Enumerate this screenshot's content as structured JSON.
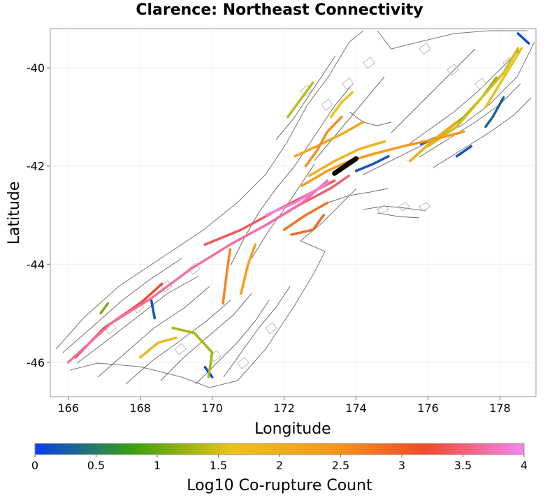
{
  "title": "Clarence: Northeast Connectivity",
  "x_axis": {
    "label": "Longitude",
    "ticks": [
      "166",
      "168",
      "170",
      "172",
      "174",
      "176",
      "178"
    ]
  },
  "y_axis": {
    "label": "Latitude",
    "ticks": [
      "-40",
      "-42",
      "-44",
      "-46"
    ]
  },
  "colorbar": {
    "label": "Log10 Co-rupture Count",
    "ticks": [
      "0",
      "0.5",
      "1",
      "1.5",
      "2",
      "2.5",
      "3",
      "3.5",
      "4"
    ],
    "stops": [
      "#0a3cf0",
      "#3aa00e",
      "#e9c41c",
      "#f59a1d",
      "#ee4b2b",
      "#f386f0"
    ]
  },
  "colors": {
    "selected_fault": "#000000",
    "fault_trace": "#555555",
    "subsection_box": "#bbbbbb",
    "coastline": "#777777"
  },
  "chart_data": {
    "type": "map",
    "title": "Clarence: Northeast Connectivity",
    "xlabel": "Longitude",
    "ylabel": "Latitude",
    "xlim": [
      165.5,
      179.0
    ],
    "ylim": [
      -46.7,
      -39.2
    ],
    "color_scale": {
      "min": 0,
      "max": 4,
      "label": "Log10 Co-rupture Count"
    },
    "selected_fault": {
      "name": "Clarence",
      "path": [
        [
          173.4,
          -42.15
        ],
        [
          173.7,
          -42.0
        ],
        [
          174.0,
          -41.85
        ]
      ]
    },
    "faults": [
      {
        "value": 3.7,
        "path": [
          [
            166.0,
            -46.0
          ],
          [
            167.2,
            -45.2
          ],
          [
            168.3,
            -44.7
          ],
          [
            169.4,
            -44.1
          ],
          [
            170.5,
            -43.6
          ],
          [
            171.5,
            -43.2
          ],
          [
            172.5,
            -42.75
          ],
          [
            173.2,
            -42.3
          ]
        ]
      },
      {
        "value": 3.2,
        "path": [
          [
            166.2,
            -45.9
          ],
          [
            167.0,
            -45.3
          ],
          [
            168.0,
            -44.8
          ],
          [
            168.6,
            -44.4
          ]
        ]
      },
      {
        "value": 3.4,
        "path": [
          [
            169.8,
            -43.6
          ],
          [
            170.8,
            -43.3
          ],
          [
            171.8,
            -42.9
          ],
          [
            172.6,
            -42.6
          ],
          [
            173.4,
            -42.3
          ]
        ]
      },
      {
        "value": 3.5,
        "path": [
          [
            171.5,
            -43.2
          ],
          [
            172.4,
            -42.8
          ],
          [
            173.3,
            -42.45
          ],
          [
            173.8,
            -42.2
          ]
        ]
      },
      {
        "value": 3.9,
        "path": [
          [
            171.5,
            -43.0
          ],
          [
            172.3,
            -42.75
          ],
          [
            173.2,
            -42.35
          ]
        ]
      },
      {
        "value": 2.8,
        "path": [
          [
            172.0,
            -43.3
          ],
          [
            172.6,
            -43.0
          ],
          [
            173.2,
            -42.75
          ]
        ]
      },
      {
        "value": 2.4,
        "path": [
          [
            172.5,
            -42.4
          ],
          [
            173.2,
            -42.1
          ],
          [
            173.8,
            -41.9
          ],
          [
            174.5,
            -41.75
          ],
          [
            175.3,
            -41.6
          ],
          [
            176.2,
            -41.45
          ],
          [
            177.0,
            -41.3
          ]
        ]
      },
      {
        "value": 2.2,
        "path": [
          [
            172.3,
            -41.8
          ],
          [
            172.9,
            -41.6
          ],
          [
            173.6,
            -41.35
          ],
          [
            174.2,
            -41.1
          ]
        ]
      },
      {
        "value": 1.9,
        "path": [
          [
            172.7,
            -42.2
          ],
          [
            173.4,
            -41.9
          ],
          [
            174.1,
            -41.65
          ],
          [
            174.8,
            -41.5
          ]
        ]
      },
      {
        "value": 1.5,
        "path": [
          [
            176.0,
            -41.6
          ],
          [
            176.8,
            -41.2
          ],
          [
            177.5,
            -40.6
          ],
          [
            178.1,
            -40.1
          ],
          [
            178.5,
            -39.6
          ]
        ]
      },
      {
        "value": 1.2,
        "path": [
          [
            176.3,
            -41.4
          ],
          [
            177.0,
            -41.0
          ],
          [
            177.5,
            -40.6
          ],
          [
            177.9,
            -40.2
          ]
        ]
      },
      {
        "value": 1.6,
        "path": [
          [
            177.6,
            -40.8
          ],
          [
            178.1,
            -40.2
          ],
          [
            178.6,
            -39.6
          ]
        ]
      },
      {
        "value": 2.1,
        "path": [
          [
            175.5,
            -41.9
          ],
          [
            176.1,
            -41.5
          ],
          [
            176.8,
            -41.1
          ]
        ]
      },
      {
        "value": 2.5,
        "path": [
          [
            172.6,
            -42.0
          ],
          [
            172.9,
            -41.7
          ],
          [
            173.2,
            -41.3
          ],
          [
            173.6,
            -41.0
          ]
        ]
      },
      {
        "value": 0.2,
        "path": [
          [
            174.0,
            -42.1
          ],
          [
            174.5,
            -41.95
          ],
          [
            174.9,
            -41.8
          ]
        ]
      },
      {
        "value": 0.3,
        "path": [
          [
            175.8,
            -41.55
          ],
          [
            176.3,
            -41.4
          ]
        ]
      },
      {
        "value": 0.2,
        "path": [
          [
            176.8,
            -41.8
          ],
          [
            177.2,
            -41.6
          ]
        ]
      },
      {
        "value": 0.3,
        "path": [
          [
            178.1,
            -40.6
          ],
          [
            177.8,
            -41.0
          ],
          [
            177.6,
            -41.2
          ]
        ]
      },
      {
        "value": 0.1,
        "path": [
          [
            178.5,
            -39.3
          ],
          [
            178.8,
            -39.5
          ]
        ]
      },
      {
        "value": 0.2,
        "path": [
          [
            168.3,
            -44.7
          ],
          [
            168.4,
            -45.1
          ]
        ]
      },
      {
        "value": 0.1,
        "path": [
          [
            169.8,
            -46.1
          ],
          [
            170.0,
            -46.3
          ]
        ]
      },
      {
        "value": 1.3,
        "path": [
          [
            168.9,
            -45.3
          ],
          [
            169.5,
            -45.4
          ],
          [
            170.0,
            -45.8
          ],
          [
            169.9,
            -46.3
          ]
        ]
      },
      {
        "value": 1.8,
        "path": [
          [
            168.0,
            -45.9
          ],
          [
            168.5,
            -45.6
          ],
          [
            169.0,
            -45.5
          ]
        ]
      },
      {
        "value": 1.4,
        "path": [
          [
            172.1,
            -41.0
          ],
          [
            172.5,
            -40.6
          ],
          [
            172.8,
            -40.3
          ]
        ]
      },
      {
        "value": 1.6,
        "path": [
          [
            173.3,
            -41.0
          ],
          [
            173.6,
            -40.7
          ],
          [
            173.9,
            -40.5
          ]
        ]
      },
      {
        "value": 2.6,
        "path": [
          [
            170.5,
            -43.7
          ],
          [
            170.4,
            -44.2
          ],
          [
            170.3,
            -44.8
          ]
        ]
      },
      {
        "value": 2.3,
        "path": [
          [
            171.2,
            -43.6
          ],
          [
            171.0,
            -44.0
          ],
          [
            170.8,
            -44.6
          ]
        ]
      },
      {
        "value": 2.9,
        "path": [
          [
            172.2,
            -43.4
          ],
          [
            172.8,
            -43.3
          ],
          [
            173.1,
            -43.0
          ]
        ]
      },
      {
        "value": 1.1,
        "path": [
          [
            166.9,
            -45.0
          ],
          [
            167.1,
            -44.8
          ]
        ]
      }
    ]
  }
}
